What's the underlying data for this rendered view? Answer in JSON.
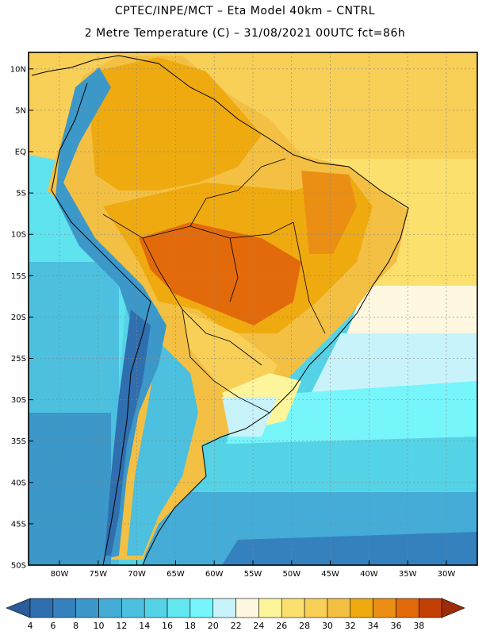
{
  "header": {
    "line1": "CPTEC/INPE/MCT –  Eta Model 40km – CNTRL",
    "line2": "2 Metre Temperature (C) – 31/08/2021 00UTC fct=86h"
  },
  "map": {
    "lat_labels": [
      "10N",
      "5N",
      "EQ",
      "5S",
      "10S",
      "15S",
      "20S",
      "25S",
      "30S",
      "35S",
      "40S",
      "45S",
      "50S"
    ],
    "lon_labels": [
      "80W",
      "75W",
      "70W",
      "65W",
      "60W",
      "55W",
      "50W",
      "45W",
      "40W",
      "35W",
      "30W"
    ],
    "lat_range": [
      -50,
      12
    ],
    "lon_range": [
      -84,
      -26
    ]
  },
  "colorbar": {
    "labels": [
      "4",
      "6",
      "8",
      "10",
      "12",
      "14",
      "16",
      "18",
      "20",
      "22",
      "24",
      "26",
      "28",
      "30",
      "32",
      "34",
      "36",
      "38"
    ],
    "colors": [
      "#2f6fb0",
      "#3581bd",
      "#3b98c9",
      "#44acd6",
      "#4cc0de",
      "#55d3e6",
      "#62e7ef",
      "#76f5fb",
      "#c9f3fb",
      "#fef8e1",
      "#fdf59b",
      "#fbe06e",
      "#f8cf57",
      "#f3c043",
      "#efaa10",
      "#eb8f14",
      "#e26a0b",
      "#c34005",
      "#9e2c08"
    ],
    "low_color": "#2a5c99"
  }
}
